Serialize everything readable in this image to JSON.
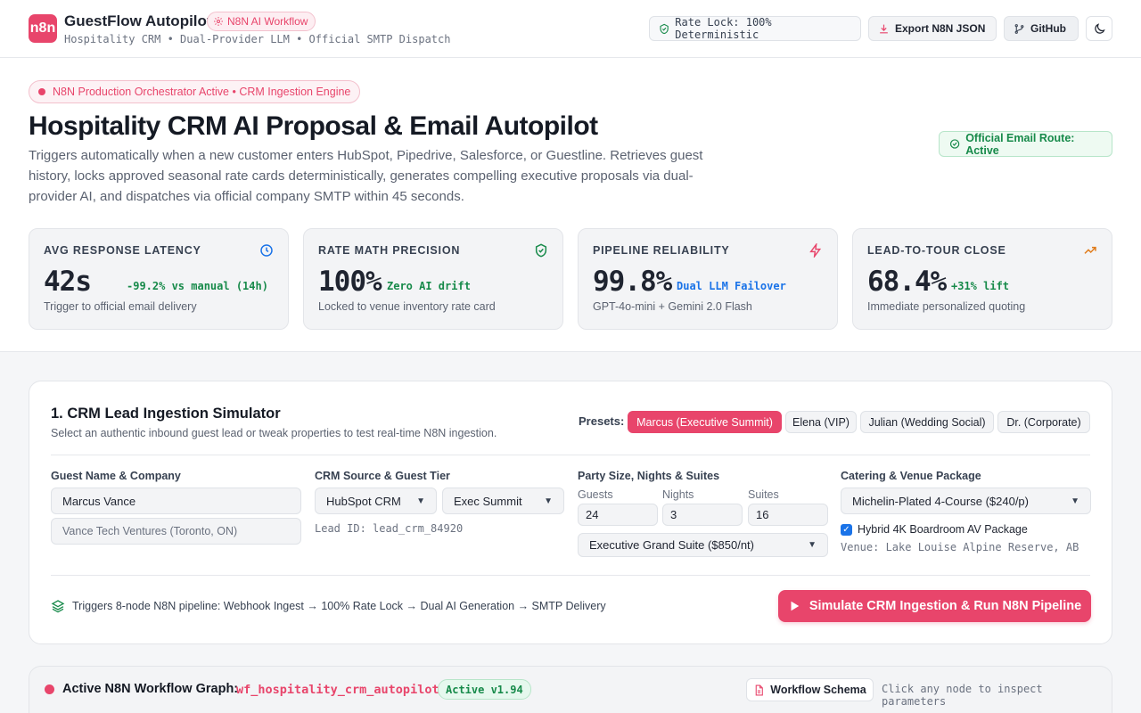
{
  "header": {
    "logo_text": "n8n",
    "title": "GuestFlow Autopilot",
    "workflow_badge": "N8N AI Workflow",
    "subtitle": "Hospitality CRM • Dual-Provider LLM • Official SMTP Dispatch",
    "rate_lock": "Rate Lock: 100% Deterministic",
    "export_label": "Export N8N JSON",
    "github_label": "GitHub",
    "theme_icon": "moon-icon"
  },
  "hero": {
    "status": "N8N Production Orchestrator Active • CRM Ingestion Engine",
    "title": "Hospitality CRM AI Proposal & Email Autopilot",
    "description": "Triggers automatically when a new customer enters HubSpot, Pipedrive, Salesforce, or Guestline. Retrieves guest history, locks approved seasonal rate cards deterministically, generates compelling executive proposals via dual-provider AI, and dispatches via official company SMTP within 45 seconds.",
    "route_status": "Official Email Route: Active"
  },
  "metrics": [
    {
      "label": "AVG RESPONSE LATENCY",
      "value": "42s",
      "delta": "-99.2% vs manual (14h)",
      "delta_color": "#178a4a",
      "foot": "Trigger to official email delivery",
      "icon": "clock-icon",
      "icon_color": "#1a73e8"
    },
    {
      "label": "RATE MATH PRECISION",
      "value": "100%",
      "delta": "Zero AI drift",
      "delta_color": "#178a4a",
      "foot": "Locked to venue inventory rate card",
      "icon": "shield-check-icon",
      "icon_color": "#178a4a"
    },
    {
      "label": "PIPELINE RELIABILITY",
      "value": "99.8%",
      "delta": "Dual LLM Failover",
      "delta_color": "#1a73e8",
      "foot": "GPT-4o-mini + Gemini 2.0 Flash",
      "icon": "lightning-icon",
      "icon_color": "#e8456b"
    },
    {
      "label": "LEAD-TO-TOUR CLOSE",
      "value": "68.4%",
      "delta": "+31% lift",
      "delta_color": "#178a4a",
      "foot": "Immediate personalized quoting",
      "icon": "trending-up-icon",
      "icon_color": "#e07b1a"
    }
  ],
  "simulator": {
    "title": "1. CRM Lead Ingestion Simulator",
    "subtitle": "Select an authentic inbound guest lead or tweak properties to test real-time N8N ingestion.",
    "presets_label": "Presets:",
    "presets": [
      "Marcus (Executive Summit)",
      "Elena (VIP)",
      "Julian (Wedding Social)",
      "Dr. (Corporate)"
    ],
    "fields": {
      "guest_label": "Guest Name & Company",
      "guest_name": "Marcus Vance",
      "company_placeholder": "Vance Tech Ventures (Toronto, ON)",
      "crm_label": "CRM Source & Guest Tier",
      "crm_source": "HubSpot CRM",
      "guest_tier": "Exec Summit",
      "lead_id": "Lead ID: lead_crm_84920",
      "party_label": "Party Size, Nights & Suites",
      "guests_label": "Guests",
      "guests": "24",
      "nights_label": "Nights",
      "nights": "3",
      "suites_label": "Suites",
      "suites": "16",
      "suite_type": "Executive Grand Suite ($850/nt)",
      "catering_label": "Catering & Venue Package",
      "catering": "Michelin-Plated 4-Course ($240/p)",
      "av_package": "Hybrid 4K Boardroom AV Package",
      "av_checked": true,
      "venue": "Venue: Lake Louise Alpine Reserve, AB"
    },
    "pipeline_note": "Triggers 8-node N8N pipeline: Webhook Ingest → 100% Rate Lock → Dual AI Generation → SMTP Delivery",
    "run_label": "Simulate CRM Ingestion & Run N8N Pipeline"
  },
  "graph": {
    "title": "Active N8N Workflow Graph:",
    "workflow_id": "wf_hospitality_crm_autopilot",
    "version": "Active v1.94",
    "schema_label": "Workflow Schema",
    "hint": "Click any node to inspect parameters"
  },
  "colors": {
    "accent": "#e8456b",
    "success": "#178a4a",
    "info": "#1a73e8"
  }
}
